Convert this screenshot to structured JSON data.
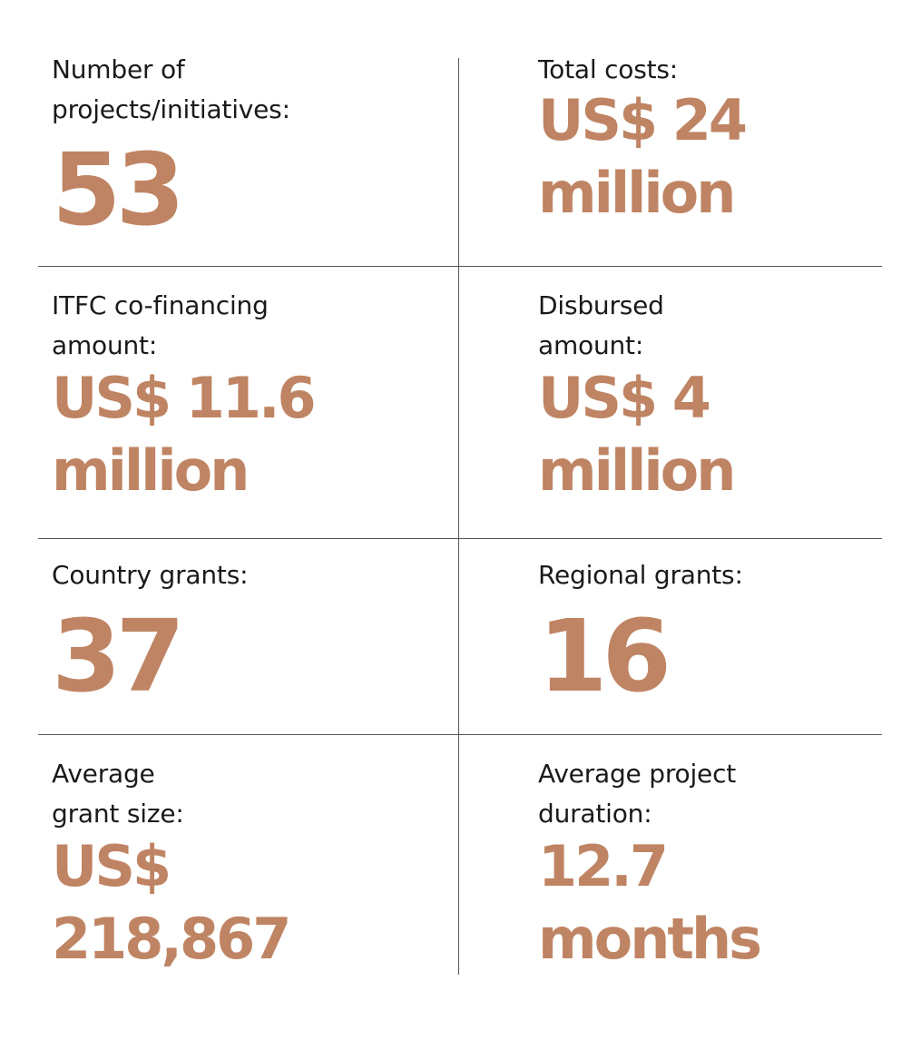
{
  "accent_color": "#bf8463",
  "stats": [
    {
      "label_lines": [
        "Number of",
        "projects/initiatives:"
      ],
      "value_lines": [
        "53"
      ]
    },
    {
      "label_lines": [
        "Total costs:"
      ],
      "value_lines": [
        "US$ 24",
        "million"
      ]
    },
    {
      "label_lines": [
        "ITFC co-financing",
        "amount:"
      ],
      "value_lines": [
        "US$ 11.6",
        "million"
      ]
    },
    {
      "label_lines": [
        "Disbursed",
        "amount:"
      ],
      "value_lines": [
        "US$ 4",
        "million"
      ]
    },
    {
      "label_lines": [
        "Country grants:"
      ],
      "value_lines": [
        "37"
      ]
    },
    {
      "label_lines": [
        "Regional grants:"
      ],
      "value_lines": [
        "16"
      ]
    },
    {
      "label_lines": [
        "Average",
        "grant size:"
      ],
      "value_lines": [
        "US$",
        "218,867"
      ]
    },
    {
      "label_lines": [
        "Average project",
        "duration:"
      ],
      "value_lines": [
        "12.7",
        "months"
      ]
    }
  ]
}
